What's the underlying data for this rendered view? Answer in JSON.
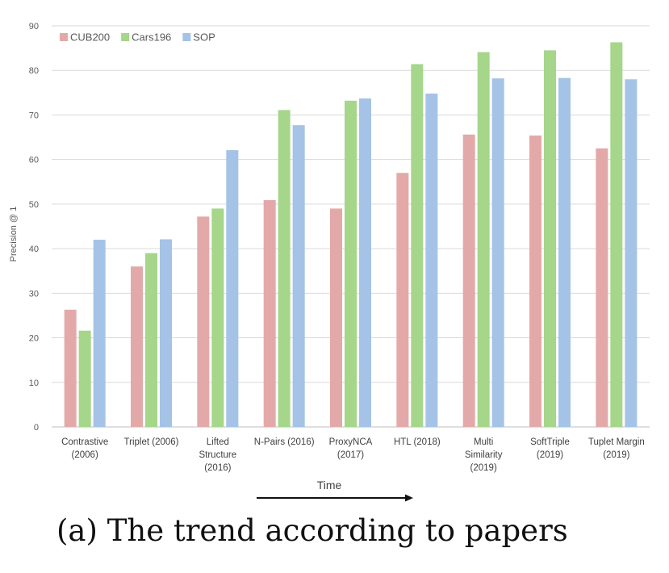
{
  "caption": "(a) The trend according to papers",
  "colors": {
    "CUB200": "#e3a9a9",
    "Cars196": "#a5d68a",
    "SOP": "#a4c3e6",
    "grid": "#d9d9d9",
    "text": "#595959"
  },
  "chart_data": {
    "type": "bar",
    "title": "",
    "xlabel": "Time",
    "ylabel": "Precision @ 1",
    "ylim": [
      0,
      90
    ],
    "yticks": [
      0,
      10,
      20,
      30,
      40,
      50,
      60,
      70,
      80,
      90
    ],
    "grid": true,
    "legend_position": "top-left",
    "categories": [
      [
        "Contrastive",
        "(2006)"
      ],
      [
        "Triplet (2006)"
      ],
      [
        "Lifted",
        "Structure",
        "(2016)"
      ],
      [
        "N-Pairs (2016)"
      ],
      [
        "ProxyNCA",
        "(2017)"
      ],
      [
        "HTL (2018)"
      ],
      [
        "Multi",
        "Similarity",
        "(2019)"
      ],
      [
        "SoftTriple",
        "(2019)"
      ],
      [
        "Tuplet Margin",
        "(2019)"
      ]
    ],
    "series": [
      {
        "name": "CUB200",
        "color_key": "CUB200",
        "values": [
          26.3,
          36.0,
          47.2,
          50.9,
          49.0,
          57.0,
          65.6,
          65.4,
          62.5
        ]
      },
      {
        "name": "Cars196",
        "color_key": "Cars196",
        "values": [
          21.6,
          39.0,
          49.0,
          71.1,
          73.2,
          81.4,
          84.1,
          84.5,
          86.3
        ]
      },
      {
        "name": "SOP",
        "color_key": "SOP",
        "values": [
          42.0,
          42.1,
          62.1,
          67.7,
          73.7,
          74.8,
          78.2,
          78.3,
          78.0
        ]
      }
    ]
  }
}
